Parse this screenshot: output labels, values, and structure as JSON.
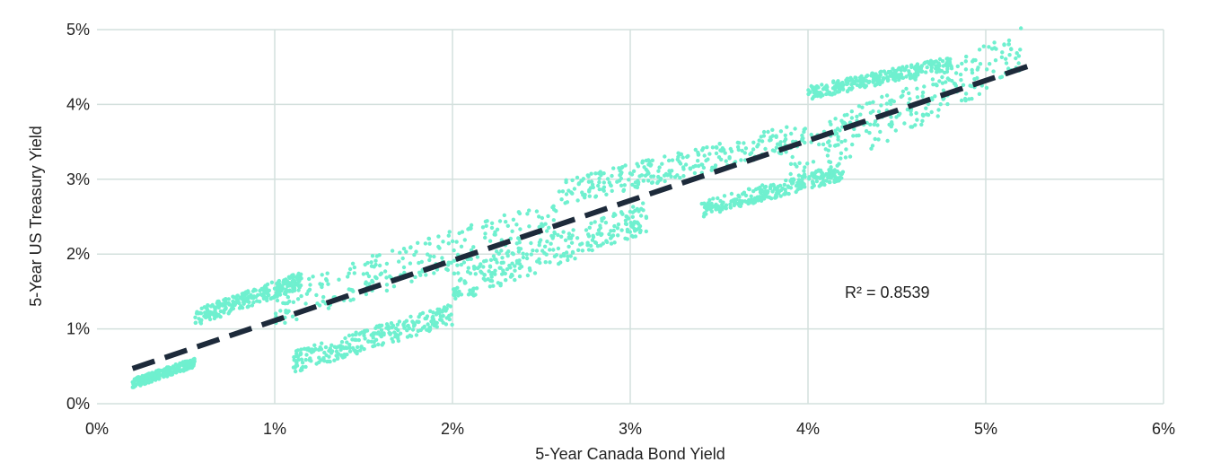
{
  "chart_data": {
    "type": "scatter",
    "xlabel": "5-Year Canada Bond Yield",
    "ylabel": "5-Year US Treasury Yield",
    "xlim": [
      0,
      6
    ],
    "ylim": [
      0,
      5
    ],
    "x_ticks": [
      "0%",
      "1%",
      "2%",
      "3%",
      "4%",
      "5%",
      "6%"
    ],
    "y_ticks": [
      "0%",
      "1%",
      "2%",
      "3%",
      "4%",
      "5%"
    ],
    "grid": "both",
    "legend": "none",
    "annotation": "R² = 0.8539",
    "trendline": {
      "x": [
        0.2,
        5.25
      ],
      "y": [
        0.47,
        4.52
      ],
      "style": "dashed"
    },
    "colors": {
      "points": "#6ff0cf",
      "trendline": "#1d2a3a",
      "grid": "#d3e0dd"
    },
    "clusters": [
      {
        "x": [
          0.2,
          0.55
        ],
        "y": [
          0.27,
          0.55
        ]
      },
      {
        "x": [
          0.55,
          1.15
        ],
        "y": [
          1.15,
          1.65
        ]
      },
      {
        "x": [
          1.1,
          2.0
        ],
        "y": [
          0.55,
          1.2
        ]
      },
      {
        "x": [
          1.0,
          2.6
        ],
        "y": [
          1.3,
          2.5
        ]
      },
      {
        "x": [
          2.0,
          3.1
        ],
        "y": [
          1.55,
          2.5
        ]
      },
      {
        "x": [
          2.6,
          4.0
        ],
        "y": [
          2.8,
          3.6
        ]
      },
      {
        "x": [
          3.4,
          4.2
        ],
        "y": [
          2.6,
          3.1
        ]
      },
      {
        "x": [
          3.9,
          5.2
        ],
        "y": [
          3.2,
          4.7
        ]
      },
      {
        "x": [
          4.0,
          4.8
        ],
        "y": [
          4.15,
          4.55
        ]
      }
    ]
  }
}
